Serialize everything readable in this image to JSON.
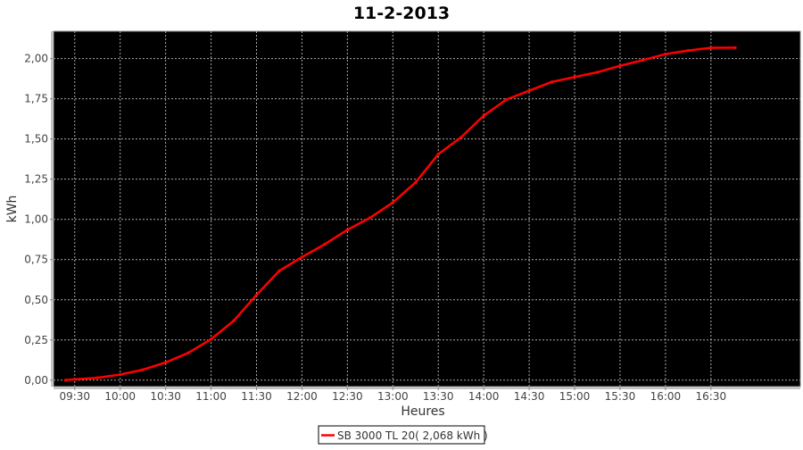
{
  "chart_data": {
    "type": "line",
    "title": "11-2-2013",
    "xlabel": "Heures",
    "ylabel": "kWh",
    "xlim": [
      "09:16",
      "17:29"
    ],
    "ylim": [
      -0.04,
      2.17
    ],
    "x_ticks": [
      "09:30",
      "10:00",
      "10:30",
      "11:00",
      "11:30",
      "12:00",
      "12:30",
      "13:00",
      "13:30",
      "14:00",
      "14:30",
      "15:00",
      "15:30",
      "16:00",
      "16:30"
    ],
    "y_ticks": [
      "0,00",
      "0,25",
      "0,50",
      "0,75",
      "1,00",
      "1,25",
      "1,50",
      "1,75",
      "2,00"
    ],
    "y_tick_values": [
      0,
      0.25,
      0.5,
      0.75,
      1.0,
      1.25,
      1.5,
      1.75,
      2.0
    ],
    "grid": true,
    "background": "#000000",
    "legend_placement": "bottom",
    "series": [
      {
        "name": "SB 3000 TL 20( 2,068 kWh )",
        "color": "#ff0000",
        "x": [
          "09:24",
          "09:30",
          "09:45",
          "10:00",
          "10:15",
          "10:30",
          "10:45",
          "11:00",
          "11:15",
          "11:30",
          "11:45",
          "12:00",
          "12:15",
          "12:30",
          "12:45",
          "13:00",
          "13:15",
          "13:30",
          "13:45",
          "14:00",
          "14:15",
          "14:30",
          "14:45",
          "15:00",
          "15:15",
          "15:30",
          "15:45",
          "16:00",
          "16:15",
          "16:30",
          "16:46"
        ],
        "values": [
          0.0,
          0.005,
          0.015,
          0.035,
          0.065,
          0.11,
          0.17,
          0.255,
          0.37,
          0.53,
          0.68,
          0.765,
          0.845,
          0.935,
          1.01,
          1.105,
          1.23,
          1.405,
          1.51,
          1.645,
          1.745,
          1.8,
          1.855,
          1.885,
          1.915,
          1.955,
          1.99,
          2.028,
          2.05,
          2.067,
          2.068
        ]
      }
    ]
  }
}
